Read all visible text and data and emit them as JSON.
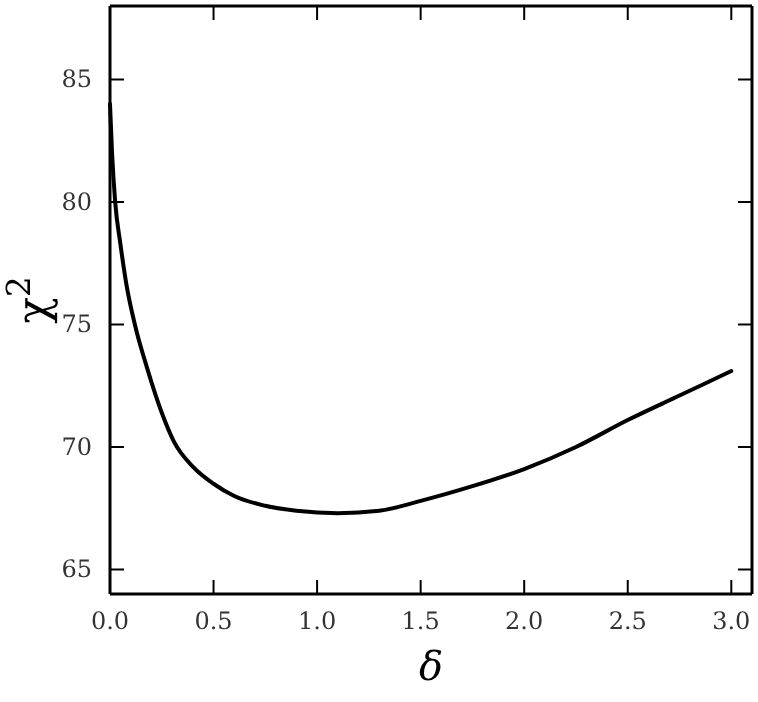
{
  "chart_data": {
    "type": "line",
    "xlabel": "δ",
    "ylabel": "χ$^{2}$",
    "x": [
      0,
      0.01,
      0.025,
      0.05,
      0.08,
      0.12,
      0.18,
      0.25,
      0.31,
      0.4,
      0.5,
      0.6,
      0.75,
      0.9,
      1.1,
      1.3,
      1.5,
      1.75,
      2.0,
      2.25,
      2.5,
      2.75,
      3.0
    ],
    "series": [
      {
        "color": "#000000",
        "values": [
          84,
          82,
          80,
          78.3,
          76.6,
          75,
          73.2,
          71.4,
          70.2,
          69.2,
          68.5,
          68.0,
          67.6,
          67.4,
          67.3,
          67.4,
          67.8,
          68.4,
          69.1,
          70.0,
          71.1,
          72.1,
          73.1
        ]
      }
    ],
    "xlim": [
      0,
      3.1
    ],
    "ylim": [
      64,
      88
    ],
    "xticks": [
      {
        "value": 0,
        "label": "0.0"
      },
      0.5,
      {
        "value": 1,
        "label": "1.0"
      },
      1.5,
      {
        "value": 2,
        "label": "2.0"
      },
      2.5,
      {
        "value": 3,
        "label": "3.0"
      }
    ],
    "yticks": [
      65,
      70,
      75,
      80,
      85
    ],
    "grid": false,
    "marker": "none",
    "line_style": "solid"
  }
}
